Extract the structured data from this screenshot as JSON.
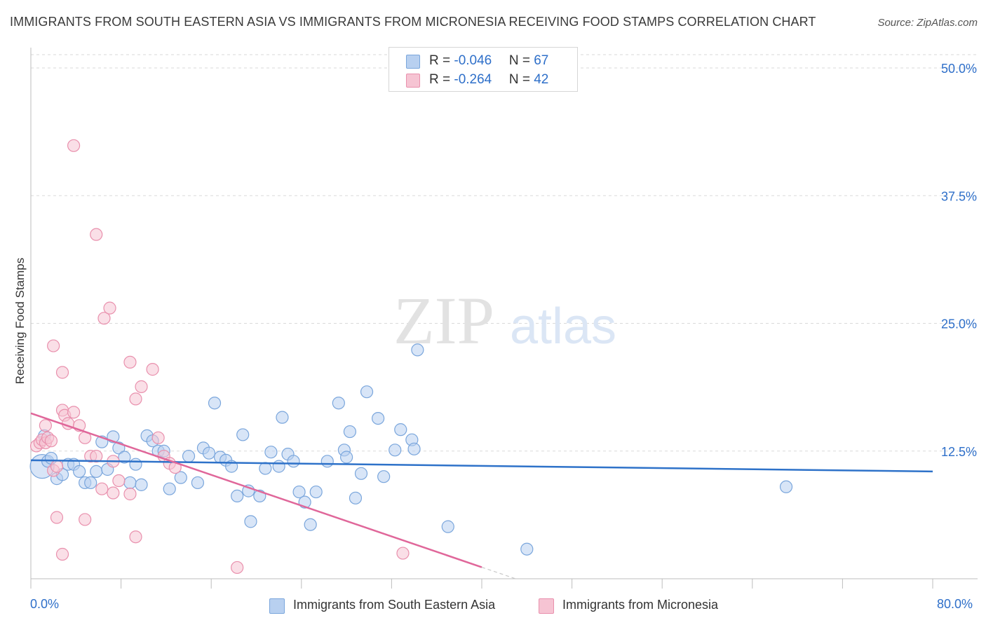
{
  "title": "IMMIGRANTS FROM SOUTH EASTERN ASIA VS IMMIGRANTS FROM MICRONESIA RECEIVING FOOD STAMPS CORRELATION CHART",
  "source": "Source: ZipAtlas.com",
  "watermark": {
    "zip": "ZIP",
    "atlas": "atlas"
  },
  "legend_top": [
    {
      "r_label": "R = ",
      "r_value": "-0.046",
      "n_label": "N = ",
      "n_value": "67"
    },
    {
      "r_label": "R = ",
      "r_value": "-0.264",
      "n_label": "N = ",
      "n_value": "42"
    }
  ],
  "colors": {
    "blue_fill": "#b8d0f0",
    "blue_stroke": "#7aa6dc",
    "blue_line": "#2e72c9",
    "pink_fill": "#f6c4d3",
    "pink_stroke": "#e990ad",
    "pink_line": "#e0679a",
    "tick_text": "#2e6fc9",
    "grid": "#d9d9d9"
  },
  "chart_data": {
    "type": "scatter",
    "title": "IMMIGRANTS FROM SOUTH EASTERN ASIA VS IMMIGRANTS FROM MICRONESIA RECEIVING FOOD STAMPS CORRELATION CHART",
    "xlabel": "",
    "ylabel": "Receiving Food Stamps",
    "xlim": [
      0,
      80
    ],
    "ylim": [
      0,
      50
    ],
    "x_tick_labels": [
      "0.0%",
      "80.0%"
    ],
    "y_ticks": [
      12.5,
      25.0,
      37.5,
      50.0
    ],
    "y_tick_labels": [
      "12.5%",
      "25.0%",
      "37.5%",
      "50.0%"
    ],
    "grid": true,
    "legend_position": "top-center",
    "series": [
      {
        "name": "Immigrants from South Eastern Asia",
        "color": "blue",
        "R": -0.046,
        "N": 67,
        "trend": {
          "x0": 0,
          "y0": 11.6,
          "x1": 80,
          "y1": 10.5,
          "solid_to": 80
        },
        "points": [
          [
            1.0,
            11.0
          ],
          [
            1.2,
            14.0
          ],
          [
            1.5,
            11.5
          ],
          [
            1.8,
            11.8
          ],
          [
            2.3,
            9.8
          ],
          [
            2.8,
            10.2
          ],
          [
            3.3,
            11.2
          ],
          [
            3.8,
            11.2
          ],
          [
            4.3,
            10.5
          ],
          [
            4.8,
            9.4
          ],
          [
            5.3,
            9.4
          ],
          [
            5.8,
            10.5
          ],
          [
            6.3,
            13.4
          ],
          [
            6.8,
            10.7
          ],
          [
            7.3,
            13.9
          ],
          [
            7.8,
            12.8
          ],
          [
            8.3,
            11.9
          ],
          [
            8.8,
            9.4
          ],
          [
            9.3,
            11.2
          ],
          [
            9.8,
            9.2
          ],
          [
            10.3,
            14.0
          ],
          [
            10.8,
            13.5
          ],
          [
            11.3,
            12.5
          ],
          [
            11.8,
            12.5
          ],
          [
            12.3,
            8.8
          ],
          [
            13.3,
            9.9
          ],
          [
            14.0,
            12.0
          ],
          [
            14.8,
            9.4
          ],
          [
            15.3,
            12.8
          ],
          [
            15.8,
            12.3
          ],
          [
            16.3,
            17.2
          ],
          [
            16.8,
            11.9
          ],
          [
            17.3,
            11.6
          ],
          [
            17.8,
            11.0
          ],
          [
            18.3,
            8.1
          ],
          [
            18.8,
            14.1
          ],
          [
            19.3,
            8.6
          ],
          [
            19.5,
            5.6
          ],
          [
            20.3,
            8.1
          ],
          [
            20.8,
            10.8
          ],
          [
            21.3,
            12.4
          ],
          [
            22.3,
            15.8
          ],
          [
            22.0,
            11.0
          ],
          [
            22.8,
            12.2
          ],
          [
            23.3,
            11.5
          ],
          [
            23.8,
            8.5
          ],
          [
            24.3,
            7.5
          ],
          [
            24.8,
            5.3
          ],
          [
            25.3,
            8.5
          ],
          [
            26.3,
            11.5
          ],
          [
            27.3,
            17.2
          ],
          [
            27.8,
            12.6
          ],
          [
            28.3,
            14.4
          ],
          [
            28.8,
            7.9
          ],
          [
            29.3,
            10.3
          ],
          [
            29.8,
            18.3
          ],
          [
            30.8,
            15.7
          ],
          [
            31.3,
            10.0
          ],
          [
            32.3,
            12.6
          ],
          [
            32.8,
            14.6
          ],
          [
            33.8,
            13.6
          ],
          [
            34.0,
            12.7
          ],
          [
            34.3,
            22.4
          ],
          [
            37.0,
            5.1
          ],
          [
            44.0,
            2.9
          ],
          [
            67.0,
            9.0
          ],
          [
            28.0,
            11.9
          ]
        ]
      },
      {
        "name": "Immigrants from Micronesia",
        "color": "pink",
        "R": -0.264,
        "N": 42,
        "trend": {
          "x0": 0,
          "y0": 16.2,
          "x1": 43,
          "y1": 0,
          "solid_to": 40
        },
        "points": [
          [
            0.5,
            13.0
          ],
          [
            0.8,
            13.3
          ],
          [
            1.0,
            13.6
          ],
          [
            1.3,
            13.3
          ],
          [
            1.5,
            13.8
          ],
          [
            1.8,
            13.5
          ],
          [
            2.0,
            10.6
          ],
          [
            2.3,
            11.0
          ],
          [
            1.3,
            15.0
          ],
          [
            2.8,
            16.5
          ],
          [
            3.0,
            16.0
          ],
          [
            3.3,
            15.2
          ],
          [
            3.8,
            16.3
          ],
          [
            4.3,
            15.0
          ],
          [
            4.8,
            13.8
          ],
          [
            5.3,
            12.0
          ],
          [
            5.8,
            12.0
          ],
          [
            6.3,
            8.8
          ],
          [
            7.3,
            8.4
          ],
          [
            7.8,
            9.6
          ],
          [
            8.8,
            8.3
          ],
          [
            2.3,
            6.0
          ],
          [
            4.8,
            5.8
          ],
          [
            9.3,
            4.1
          ],
          [
            2.8,
            2.4
          ],
          [
            18.3,
            1.1
          ],
          [
            33.0,
            2.5
          ],
          [
            2.0,
            22.8
          ],
          [
            2.8,
            20.2
          ],
          [
            6.5,
            25.5
          ],
          [
            7.0,
            26.5
          ],
          [
            8.8,
            21.2
          ],
          [
            9.3,
            17.6
          ],
          [
            9.8,
            18.8
          ],
          [
            10.8,
            20.5
          ],
          [
            11.3,
            13.8
          ],
          [
            11.8,
            12.0
          ],
          [
            12.3,
            11.3
          ],
          [
            5.8,
            33.7
          ],
          [
            3.8,
            42.4
          ],
          [
            7.3,
            11.5
          ],
          [
            12.8,
            10.9
          ]
        ]
      }
    ]
  },
  "bottom_legend": [
    {
      "label": "Immigrants from South Eastern Asia"
    },
    {
      "label": "Immigrants from Micronesia"
    }
  ]
}
